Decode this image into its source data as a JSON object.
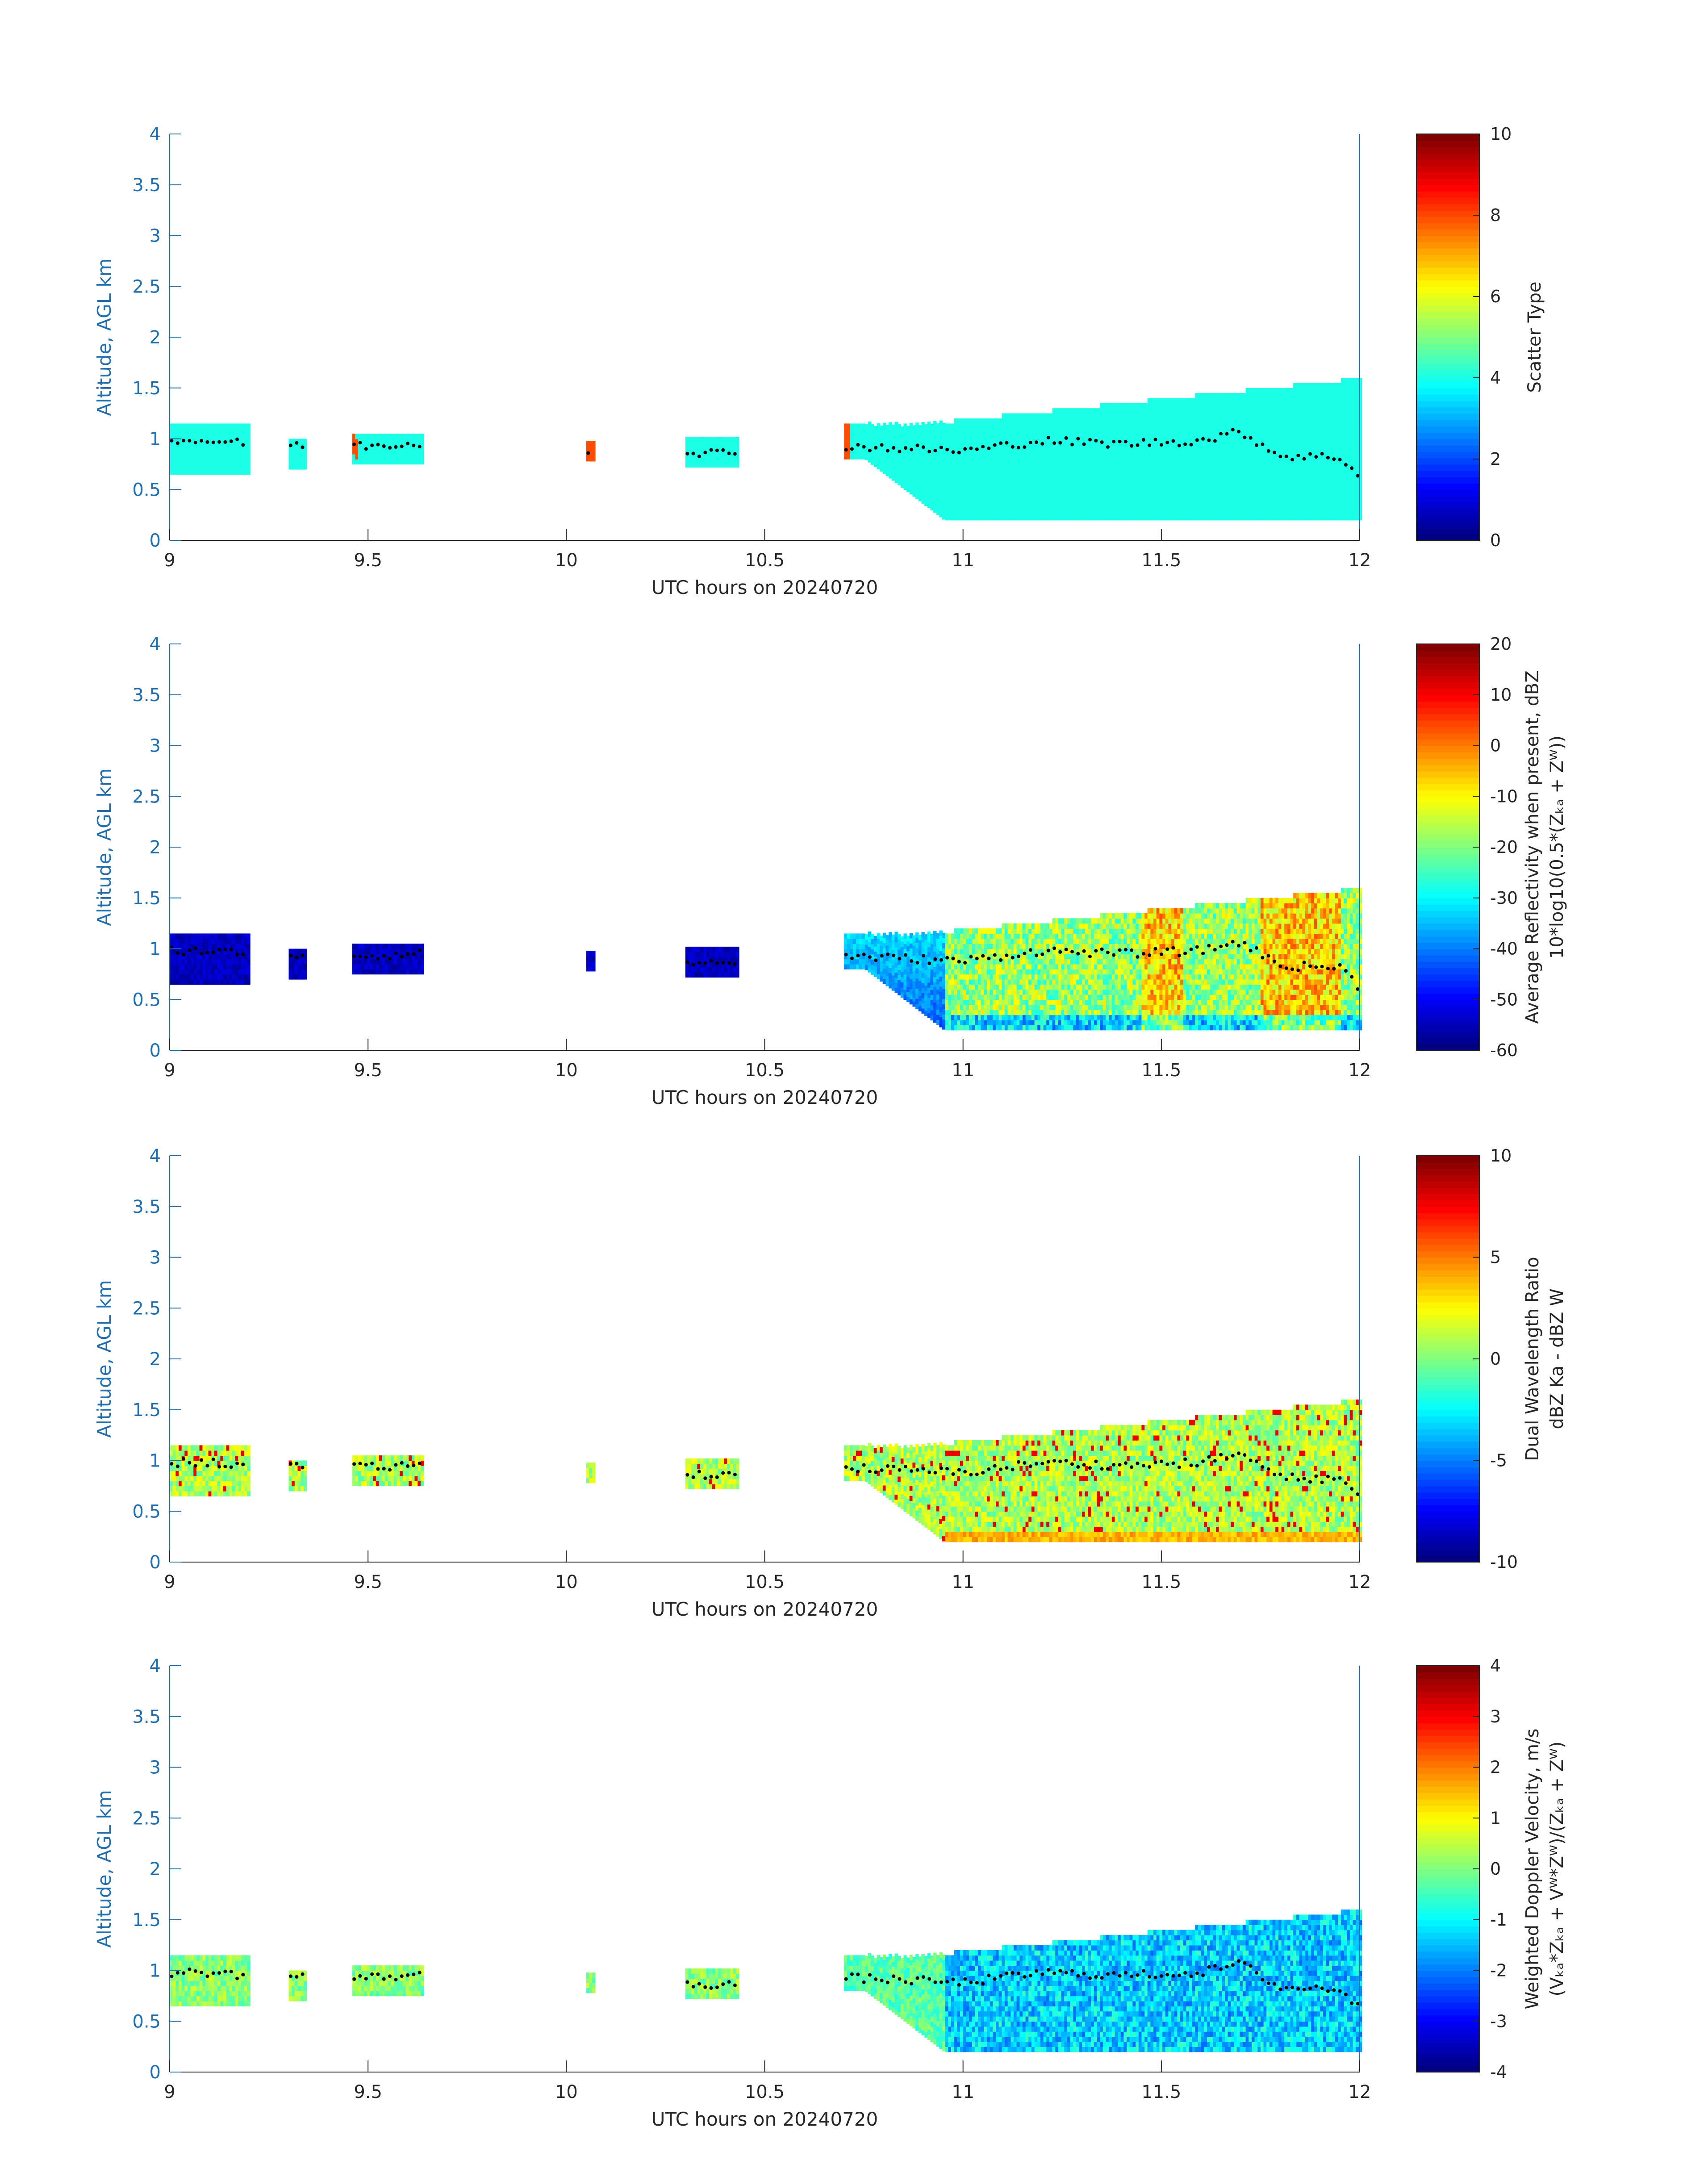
{
  "chart_data": [
    {
      "type": "heatmap",
      "panel": "scatter-type",
      "xlabel": "UTC hours on 20240720",
      "ylabel": "Altitude, AGL km",
      "xlim": [
        9,
        12
      ],
      "ylim": [
        0,
        4
      ],
      "xticks": [
        "9",
        "9.5",
        "10",
        "10.5",
        "11",
        "11.5",
        "12"
      ],
      "yticks": [
        "0",
        "0.5",
        "1",
        "1.5",
        "2",
        "2.5",
        "3",
        "3.5",
        "4"
      ],
      "colorbar": {
        "label_lines": [
          "Scatter Type"
        ],
        "range": [
          0,
          10
        ],
        "ticks": [
          "0",
          "2",
          "4",
          "6",
          "8",
          "10"
        ]
      },
      "field": "scatter"
    },
    {
      "type": "heatmap",
      "panel": "reflectivity",
      "xlabel": "UTC hours on 20240720",
      "ylabel": "Altitude, AGL km",
      "xlim": [
        9,
        12
      ],
      "ylim": [
        0,
        4
      ],
      "xticks": [
        "9",
        "9.5",
        "10",
        "10.5",
        "11",
        "11.5",
        "12"
      ],
      "yticks": [
        "0",
        "0.5",
        "1",
        "1.5",
        "2",
        "2.5",
        "3",
        "3.5",
        "4"
      ],
      "colorbar": {
        "label_lines": [
          "Average Reflectivity when present, dBZ",
          "10*log10(0.5*(Zₖₐ + Zᵂ))"
        ],
        "range": [
          -60,
          20
        ],
        "ticks": [
          "-60",
          "-50",
          "-40",
          "-30",
          "-20",
          "-10",
          "0",
          "10",
          "20"
        ]
      },
      "field": "reflectivity"
    },
    {
      "type": "heatmap",
      "panel": "dual-wavelength-ratio",
      "xlabel": "UTC hours on 20240720",
      "ylabel": "Altitude, AGL km",
      "xlim": [
        9,
        12
      ],
      "ylim": [
        0,
        4
      ],
      "xticks": [
        "9",
        "9.5",
        "10",
        "10.5",
        "11",
        "11.5",
        "12"
      ],
      "yticks": [
        "0",
        "0.5",
        "1",
        "1.5",
        "2",
        "2.5",
        "3",
        "3.5",
        "4"
      ],
      "colorbar": {
        "label_lines": [
          "Dual Wavelength Ratio",
          "dBZ Ka - dBZ W"
        ],
        "range": [
          -10,
          10
        ],
        "ticks": [
          "-10",
          "-5",
          "0",
          "5",
          "10"
        ]
      },
      "field": "dwr"
    },
    {
      "type": "heatmap",
      "panel": "doppler-velocity",
      "xlabel": "UTC hours on 20240720",
      "ylabel": "Altitude, AGL km",
      "xlim": [
        9,
        12
      ],
      "ylim": [
        0,
        4
      ],
      "xticks": [
        "9",
        "9.5",
        "10",
        "10.5",
        "11",
        "11.5",
        "12"
      ],
      "yticks": [
        "0",
        "0.5",
        "1",
        "1.5",
        "2",
        "2.5",
        "3",
        "3.5",
        "4"
      ],
      "colorbar": {
        "label_lines": [
          "Weighted Doppler Velocity, m/s",
          "(Vₖₐ*Zₖₐ + Vᵂ*Zᵂ)/(Zₖₐ + Zᵂ)"
        ],
        "range": [
          -4,
          4
        ],
        "ticks": [
          "-4",
          "-3",
          "-2",
          "-1",
          "0",
          "1",
          "2",
          "3",
          "4"
        ]
      },
      "field": "velocity"
    }
  ],
  "cloud_segments": [
    {
      "start": 9.0,
      "end": 9.2,
      "base_km": 0.65,
      "top_km": 1.15
    },
    {
      "start": 9.3,
      "end": 9.34,
      "base_km": 0.7,
      "top_km": 1.0
    },
    {
      "start": 9.46,
      "end": 9.64,
      "base_km": 0.75,
      "top_km": 1.05
    },
    {
      "start": 10.05,
      "end": 10.07,
      "base_km": 0.78,
      "top_km": 0.95
    },
    {
      "start": 10.3,
      "end": 10.43,
      "base_km": 0.72,
      "top_km": 0.98
    },
    {
      "start": 10.7,
      "end": 12.0,
      "base_km": 0.2,
      "top_km": 1.55
    }
  ],
  "cloud_base_km": [
    [
      9.0,
      0.98
    ],
    [
      9.1,
      0.98
    ],
    [
      9.2,
      0.95
    ],
    [
      9.5,
      0.93
    ],
    [
      9.6,
      0.95
    ],
    [
      10.3,
      0.87
    ],
    [
      10.4,
      0.86
    ],
    [
      10.7,
      0.93
    ],
    [
      11.0,
      0.88
    ],
    [
      11.2,
      0.98
    ],
    [
      11.4,
      0.95
    ],
    [
      11.6,
      0.98
    ],
    [
      11.7,
      1.07
    ],
    [
      11.8,
      0.83
    ],
    [
      11.95,
      0.82
    ],
    [
      12.0,
      0.62
    ]
  ]
}
